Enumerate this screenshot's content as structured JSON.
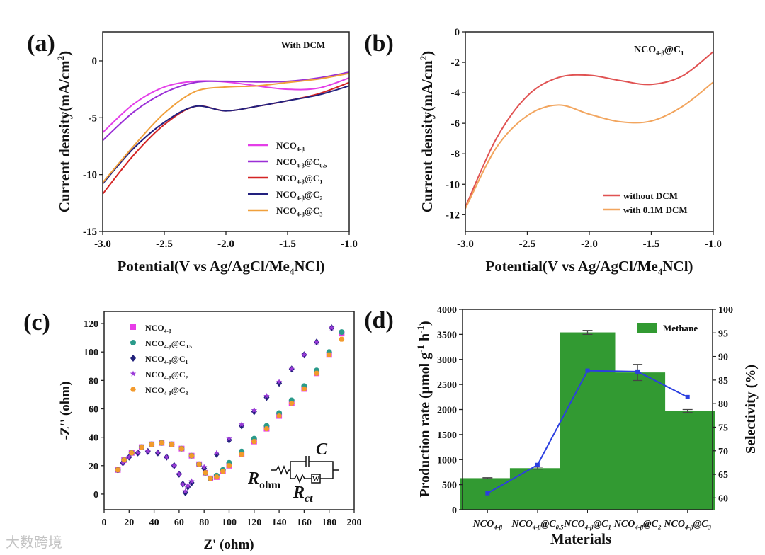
{
  "watermark": "大数跨境",
  "chart_data": [
    {
      "panel": "(a)",
      "type": "line",
      "annotation": "With DCM",
      "xlabel": {
        "base": "Potential(V vs Ag/AgCl/Me",
        "sub": "4",
        "tail": "NCl)"
      },
      "ylabel": {
        "base": "Current density(mA/cm",
        "sup": "2",
        "tail": ")"
      },
      "xlim": [
        -3.0,
        -1.0
      ],
      "ylim": [
        -15,
        2.55
      ],
      "xticks": [
        -3.0,
        -2.5,
        -2.0,
        -1.5,
        -1.0
      ],
      "yticks": [
        -15,
        -10,
        -5,
        0
      ],
      "legend": "lower-right",
      "x": [
        -3.0,
        -2.75,
        -2.5,
        -2.25,
        -2.0,
        -1.75,
        -1.5,
        -1.25,
        -1.0
      ],
      "series": [
        {
          "name": {
            "base": "NCO",
            "sub1": "4-β",
            "mid": "",
            "sub2": ""
          },
          "color": "#e43ee8",
          "values": [
            -6.3,
            -3.8,
            -2.3,
            -1.8,
            -1.85,
            -2.2,
            -2.5,
            -2.4,
            -1.5
          ]
        },
        {
          "name": {
            "base": "NCO",
            "sub1": "4-β",
            "mid": "@C",
            "sub2": "0.5"
          },
          "color": "#9a2fd6",
          "values": [
            -7.0,
            -4.5,
            -2.8,
            -1.9,
            -1.8,
            -1.85,
            -1.8,
            -1.5,
            -1.0
          ]
        },
        {
          "name": {
            "base": "NCO",
            "sub1": "4-β",
            "mid": "@C",
            "sub2": "1"
          },
          "color": "#d42424",
          "values": [
            -11.7,
            -8.3,
            -5.6,
            -4.0,
            -4.4,
            -4.0,
            -3.5,
            -2.9,
            -1.9
          ]
        },
        {
          "name": {
            "base": "NCO",
            "sub1": "4-β",
            "mid": "@C",
            "sub2": "2"
          },
          "color": "#22207e",
          "values": [
            -10.8,
            -7.7,
            -5.4,
            -4.0,
            -4.4,
            -4.0,
            -3.5,
            -3.0,
            -2.2
          ]
        },
        {
          "name": {
            "base": "NCO",
            "sub1": "4-β",
            "mid": "@C",
            "sub2": "3"
          },
          "color": "#f0a03c",
          "values": [
            -10.7,
            -7.5,
            -4.6,
            -2.7,
            -2.3,
            -2.2,
            -1.9,
            -1.6,
            -1.1
          ]
        }
      ]
    },
    {
      "panel": "(b)",
      "type": "line",
      "annotation": {
        "base": "NCO",
        "sub1": "4-β",
        "mid": "@C",
        "sub2": "1"
      },
      "xlabel": {
        "base": "Potential(V vs Ag/AgCl/Me",
        "sub": "4",
        "tail": "NCl)"
      },
      "ylabel": {
        "base": "Current density(mA/cm",
        "sup": "2",
        "tail": ")"
      },
      "xlim": [
        -3.0,
        -1.0
      ],
      "ylim": [
        -13.1,
        0
      ],
      "xticks": [
        -3.0,
        -2.5,
        -2.0,
        -1.5,
        -1.0
      ],
      "yticks": [
        -12,
        -10,
        -8,
        -6,
        -4,
        -2,
        0
      ],
      "legend": "lower-right",
      "x": [
        -3.0,
        -2.75,
        -2.5,
        -2.25,
        -2.0,
        -1.75,
        -1.5,
        -1.25,
        -1.0
      ],
      "series": [
        {
          "name": "without DCM",
          "color": "#e05252",
          "values": [
            -11.5,
            -7.0,
            -4.2,
            -3.0,
            -2.85,
            -3.2,
            -3.45,
            -2.9,
            -1.3
          ]
        },
        {
          "name": "with 0.1M DCM",
          "color": "#f2a55e",
          "values": [
            -11.6,
            -7.6,
            -5.5,
            -4.8,
            -5.4,
            -5.9,
            -5.85,
            -4.9,
            -3.3
          ]
        }
      ]
    },
    {
      "panel": "(c)",
      "type": "scatter",
      "xlabel": "Z' (ohm)",
      "ylabel": "-Z'' (ohm)",
      "xlim": [
        0,
        200
      ],
      "ylim": [
        -11,
        128.5
      ],
      "xticks": [
        0,
        20,
        40,
        60,
        80,
        100,
        120,
        140,
        160,
        180,
        200
      ],
      "yticks": [
        0,
        20,
        40,
        60,
        80,
        100,
        120
      ],
      "legend": "top-left",
      "circuit": {
        "r1": "R",
        "r1sub": "ohm",
        "c": "C",
        "r2": "R",
        "r2sub": "ct",
        "w": "W"
      },
      "series": [
        {
          "name": {
            "base": "NCO",
            "sub1": "4-β",
            "mid": "",
            "sub2": ""
          },
          "color": "#e83ce8",
          "marker": "square",
          "x": [
            11,
            16,
            22,
            30,
            38,
            46,
            54,
            62,
            70,
            76,
            81,
            85,
            90,
            95,
            100,
            110,
            120,
            130,
            140,
            150,
            160,
            170,
            180,
            190
          ],
          "y": [
            17,
            24,
            29,
            33,
            35,
            36,
            35,
            32,
            27,
            21,
            15,
            11,
            12,
            16,
            20,
            28,
            37,
            46,
            55,
            64,
            74,
            85,
            98,
            113
          ]
        },
        {
          "name": {
            "base": "NCO",
            "sub1": "4-β",
            "mid": "@C",
            "sub2": "0.5"
          },
          "color": "#2a9a8a",
          "marker": "circle",
          "x": [
            11,
            16,
            22,
            30,
            38,
            46,
            54,
            62,
            70,
            76,
            81,
            85,
            90,
            95,
            100,
            110,
            120,
            130,
            140,
            150,
            160,
            170,
            180,
            190
          ],
          "y": [
            17,
            24,
            29,
            33,
            35,
            36,
            35,
            32,
            27,
            21,
            15,
            11,
            13,
            17,
            22,
            30,
            39,
            48,
            57,
            66,
            76,
            87,
            100,
            114
          ]
        },
        {
          "name": {
            "base": "NCO",
            "sub1": "4-β",
            "mid": "@C",
            "sub2": "1"
          },
          "color": "#20207a",
          "marker": "diamond",
          "x": [
            11,
            15,
            20,
            27,
            35,
            43,
            50,
            56,
            60,
            63,
            65,
            67,
            70,
            80,
            90,
            100,
            110,
            120,
            130,
            140,
            150,
            160,
            170,
            182
          ],
          "y": [
            17,
            22,
            26,
            29,
            30,
            29,
            26,
            20,
            14,
            7,
            1,
            5,
            8,
            18,
            28,
            38,
            48,
            58,
            68,
            78,
            88,
            98,
            107,
            117
          ]
        },
        {
          "name": {
            "base": "NCO",
            "sub1": "4-β",
            "mid": "@C",
            "sub2": "2"
          },
          "color": "#9a3ad8",
          "marker": "star",
          "x": [
            11,
            15,
            20,
            27,
            35,
            43,
            50,
            56,
            60,
            63,
            65,
            67,
            70,
            80,
            90,
            100,
            110,
            120,
            130,
            140,
            150,
            160,
            170,
            182
          ],
          "y": [
            17,
            22,
            26,
            29,
            30,
            29,
            26,
            20,
            14,
            7,
            2,
            6,
            9,
            19,
            29,
            39,
            49,
            59,
            69,
            79,
            88,
            98,
            107,
            117
          ]
        },
        {
          "name": {
            "base": "NCO",
            "sub1": "4-β",
            "mid": "@C",
            "sub2": "3"
          },
          "color": "#f39a2c",
          "marker": "hexagon",
          "x": [
            11,
            16,
            22,
            30,
            38,
            46,
            54,
            62,
            70,
            76,
            81,
            85,
            90,
            95,
            100,
            110,
            120,
            130,
            140,
            150,
            160,
            170,
            180,
            190
          ],
          "y": [
            17,
            24,
            29,
            33,
            35,
            36,
            35,
            32,
            27,
            21,
            15,
            11,
            12,
            16,
            20,
            28,
            37,
            46,
            55,
            64,
            74,
            85,
            98,
            109
          ]
        }
      ]
    },
    {
      "panel": "(d)",
      "type": "bar",
      "xlabel": "Materials",
      "ylabel": {
        "base": "Production rate (μmol g",
        "sup1": "-1",
        "mid": " h",
        "sup2": "-1",
        "tail": ")"
      },
      "y2label": "Selectivity (%)",
      "ylim": [
        0,
        4000
      ],
      "y2lim": [
        57.5,
        100
      ],
      "yticks": [
        0,
        500,
        1000,
        1500,
        2000,
        2500,
        3000,
        3500,
        4000
      ],
      "y2ticks": [
        60,
        65,
        70,
        75,
        80,
        85,
        90,
        95,
        100
      ],
      "legend": "top-right",
      "categories": [
        {
          "base": "NCO",
          "sub1": "4-β",
          "mid": "",
          "sub2": ""
        },
        {
          "base": "NCO",
          "sub1": "4-β",
          "mid": "@C",
          "sub2": "0.5"
        },
        {
          "base": "NCO",
          "sub1": "4-β",
          "mid": "@C",
          "sub2": "1"
        },
        {
          "base": "NCO",
          "sub1": "4-β",
          "mid": "@C",
          "sub2": "2"
        },
        {
          "base": "NCO",
          "sub1": "4-β",
          "mid": "@C",
          "sub2": "3"
        }
      ],
      "bar_series": {
        "name": "Methane",
        "color": "#329a32",
        "values": [
          630,
          830,
          3540,
          2740,
          1970
        ],
        "errors": [
          10,
          20,
          40,
          160,
          30
        ]
      },
      "line_series": {
        "name": "Selectivity",
        "color": "#2b3fe0",
        "values": [
          61.0,
          67.0,
          87.0,
          86.8,
          81.4
        ]
      }
    }
  ]
}
